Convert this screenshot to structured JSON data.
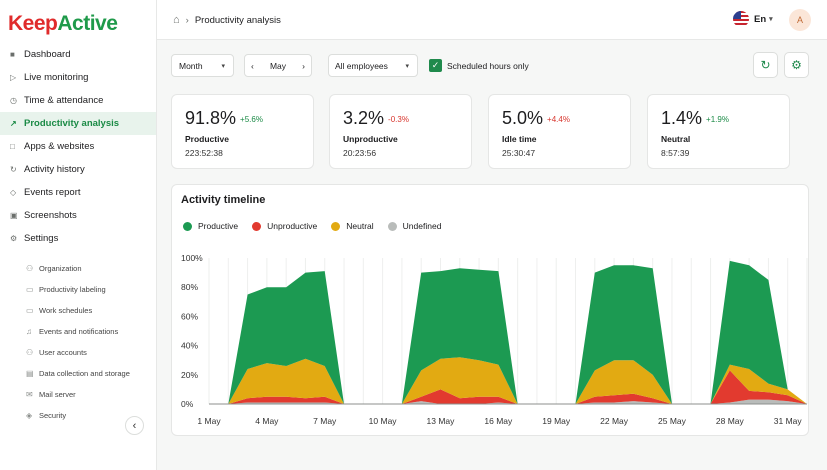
{
  "brand": {
    "part1": "Keep",
    "part2": "Active"
  },
  "nav": {
    "items": [
      {
        "icon": "■",
        "label": "Dashboard",
        "name": "nav-dashboard"
      },
      {
        "icon": "▷",
        "label": "Live monitoring",
        "name": "nav-live-monitoring"
      },
      {
        "icon": "◷",
        "label": "Time & attendance",
        "name": "nav-time-attendance"
      },
      {
        "icon": "↗",
        "label": "Productivity analysis",
        "name": "nav-productivity-analysis"
      },
      {
        "icon": "□",
        "label": "Apps & websites",
        "name": "nav-apps-websites"
      },
      {
        "icon": "↻",
        "label": "Activity history",
        "name": "nav-activity-history"
      },
      {
        "icon": "◇",
        "label": "Events report",
        "name": "nav-events-report"
      },
      {
        "icon": "▣",
        "label": "Screenshots",
        "name": "nav-screenshots"
      },
      {
        "icon": "⚙",
        "label": "Settings",
        "name": "nav-settings"
      }
    ],
    "settings_sub": [
      {
        "icon": "⚇",
        "label": "Organization"
      },
      {
        "icon": "▭",
        "label": "Productivity labeling"
      },
      {
        "icon": "▭",
        "label": "Work schedules"
      },
      {
        "icon": "♫",
        "label": "Events and notifications"
      },
      {
        "icon": "⚇",
        "label": "User accounts"
      },
      {
        "icon": "▤",
        "label": "Data collection and storage"
      },
      {
        "icon": "✉",
        "label": "Mail server"
      },
      {
        "icon": "◈",
        "label": "Security"
      }
    ],
    "collapse_icon": "‹"
  },
  "topbar": {
    "breadcrumb": "Productivity analysis",
    "language": "En",
    "avatar_initial": "A"
  },
  "filters": {
    "period": "Month",
    "date": "May",
    "employees": "All employees",
    "scheduled_only": "Scheduled hours only"
  },
  "stats": [
    {
      "value": "91.8%",
      "delta": "+5.6%",
      "trend": "up",
      "label": "Productive",
      "time": "223:52:38"
    },
    {
      "value": "3.2%",
      "delta": "-0.3%",
      "trend": "down",
      "label": "Unproductive",
      "time": "20:23:56"
    },
    {
      "value": "5.0%",
      "delta": "+4.4%",
      "trend": "down",
      "label": "Idle time",
      "time": "25:30:47"
    },
    {
      "value": "1.4%",
      "delta": "+1.9%",
      "trend": "up",
      "label": "Neutral",
      "time": "8:57:39"
    }
  ],
  "timeline": {
    "title": "Activity timeline",
    "legend": [
      {
        "label": "Productive",
        "color": "#1c9a52"
      },
      {
        "label": "Unproductive",
        "color": "#e23a2f"
      },
      {
        "label": "Neutral",
        "color": "#e2aa12"
      },
      {
        "label": "Undefined",
        "color": "#b9bcba"
      }
    ]
  },
  "chart_data": {
    "type": "area",
    "stacked": true,
    "y_ticks": [
      "0%",
      "20%",
      "40%",
      "60%",
      "80%",
      "100%"
    ],
    "ylim": [
      0,
      100
    ],
    "x_ticks": [
      "1 May",
      "4 May",
      "7 May",
      "10 May",
      "13 May",
      "16 May",
      "19 May",
      "22 May",
      "25 May",
      "28 May",
      "31 May"
    ],
    "x": [
      1,
      2,
      3,
      4,
      5,
      6,
      7,
      8,
      9,
      10,
      11,
      12,
      13,
      14,
      15,
      16,
      17,
      18,
      19,
      20,
      21,
      22,
      23,
      24,
      25,
      26,
      27,
      28,
      29,
      30,
      31,
      32
    ],
    "series": [
      {
        "name": "Undefined",
        "color": "#b9bcba",
        "values": [
          0,
          0,
          1,
          1,
          1,
          1,
          1,
          0,
          0,
          0,
          0,
          2,
          0,
          0,
          0,
          1,
          0,
          0,
          0,
          0,
          1,
          1,
          2,
          1,
          0,
          0,
          0,
          1,
          3,
          3,
          2,
          0
        ]
      },
      {
        "name": "Unproductive",
        "color": "#e23a2f",
        "values": [
          0,
          0,
          3,
          4,
          4,
          3,
          4,
          0,
          0,
          0,
          0,
          3,
          10,
          4,
          5,
          4,
          0,
          0,
          0,
          0,
          4,
          5,
          5,
          3,
          0,
          0,
          0,
          22,
          6,
          5,
          4,
          0
        ]
      },
      {
        "name": "Neutral",
        "color": "#e2aa12",
        "values": [
          0,
          0,
          20,
          23,
          21,
          27,
          21,
          0,
          0,
          0,
          0,
          18,
          21,
          28,
          25,
          22,
          0,
          0,
          0,
          0,
          18,
          24,
          23,
          16,
          0,
          0,
          0,
          4,
          15,
          6,
          4,
          0
        ]
      },
      {
        "name": "Productive",
        "color": "#1c9a52",
        "values": [
          0,
          0,
          51,
          52,
          54,
          59,
          65,
          0,
          0,
          0,
          0,
          67,
          60,
          61,
          62,
          64,
          0,
          0,
          0,
          0,
          67,
          65,
          65,
          73,
          0,
          0,
          0,
          71,
          71,
          71,
          0,
          0
        ]
      }
    ]
  }
}
